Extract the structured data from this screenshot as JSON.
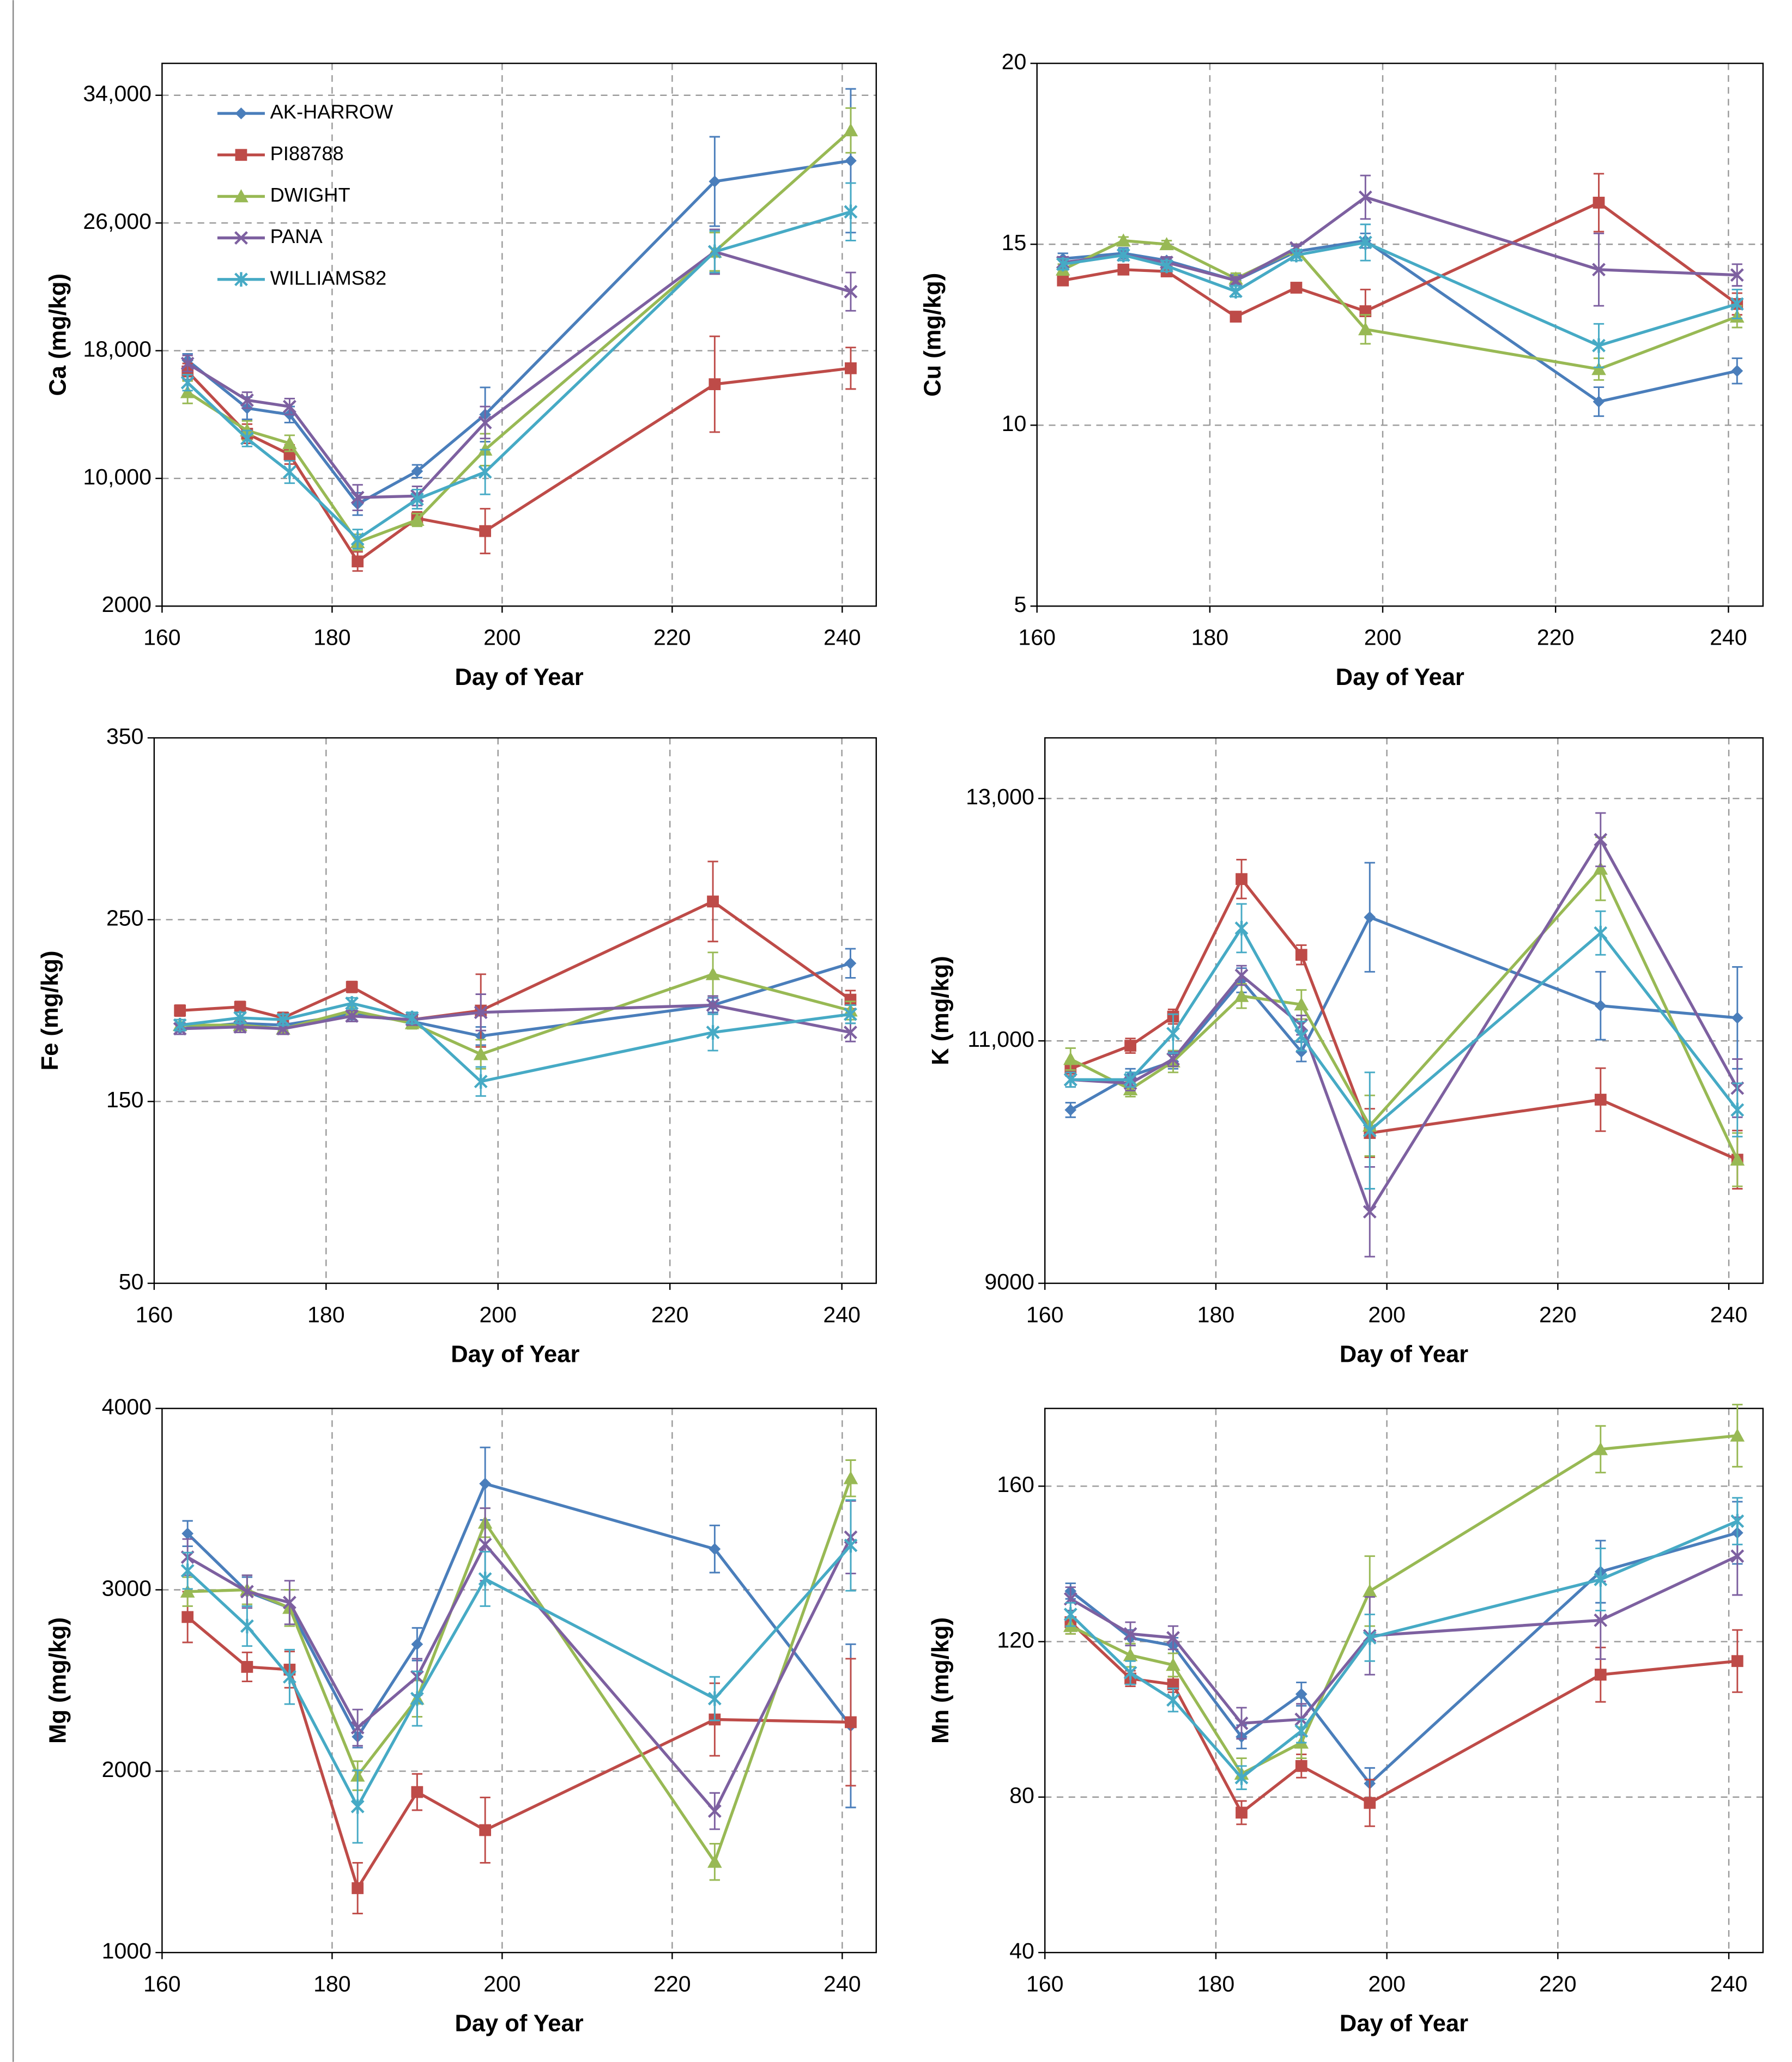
{
  "chart_data": [
    {
      "type": "line",
      "ylabel": "Ca (mg/kg)",
      "xlabel": "Day of Year",
      "legend": "upper left",
      "grid": true,
      "x": [
        163,
        170,
        175,
        183,
        190,
        198,
        225,
        241
      ],
      "xlim": [
        160,
        244
      ],
      "xticks": [
        160,
        180,
        200,
        220,
        240
      ],
      "ylim": [
        2000,
        36000
      ],
      "yticks": [
        2000,
        {
          "value": 10000,
          "label": "10,000"
        },
        {
          "value": 18000,
          "label": "18,000"
        },
        {
          "value": 26000,
          "label": "26,000"
        },
        {
          "value": 34000,
          "label": "34,000"
        }
      ],
      "series": [
        {
          "name": "AK-HARROW",
          "color": "#4a7ebb",
          "marker": "diamond",
          "values": [
            17400,
            14400,
            14000,
            8400,
            10450,
            14000,
            28600,
            29900
          ],
          "errors": [
            400,
            700,
            500,
            700,
            400,
            1700,
            2800,
            4500
          ]
        },
        {
          "name": "PI88788",
          "color": "#be4b48",
          "marker": "square",
          "values": [
            16700,
            12800,
            11500,
            4800,
            7500,
            6700,
            15900,
            16900
          ],
          "errors": [
            500,
            600,
            600,
            600,
            400,
            1400,
            3000,
            1300
          ]
        },
        {
          "name": "DWIGHT",
          "color": "#98b954",
          "marker": "triangle",
          "values": [
            15400,
            13000,
            12200,
            6000,
            7400,
            11800,
            24200,
            31800
          ],
          "errors": [
            700,
            600,
            500,
            500,
            400,
            1000,
            1200,
            1400
          ]
        },
        {
          "name": "PANA",
          "color": "#7d60a0",
          "marker": "x",
          "values": [
            17200,
            14900,
            14500,
            8800,
            8900,
            13500,
            24200,
            21700
          ],
          "errors": [
            500,
            500,
            500,
            800,
            600,
            1000,
            1400,
            1200
          ]
        },
        {
          "name": "WILLIAMS82",
          "color": "#46aac5",
          "marker": "star",
          "values": [
            16000,
            12500,
            10400,
            6200,
            8700,
            10400,
            24200,
            26700
          ],
          "errors": [
            500,
            500,
            700,
            600,
            600,
            1400,
            1300,
            1800
          ]
        }
      ]
    },
    {
      "type": "line",
      "ylabel": "Cu (mg/kg)",
      "xlabel": "Day of Year",
      "grid": true,
      "x": [
        163,
        170,
        175,
        183,
        190,
        198,
        225,
        241
      ],
      "xlim": [
        160,
        244
      ],
      "xticks": [
        160,
        180,
        200,
        220,
        240
      ],
      "ylim": [
        5,
        20
      ],
      "yticks": [
        5,
        10,
        15,
        20
      ],
      "series": [
        {
          "name": "AK-HARROW",
          "color": "#4a7ebb",
          "marker": "diamond",
          "values": [
            14.6,
            14.75,
            14.55,
            14.0,
            14.8,
            15.1,
            10.65,
            11.5
          ],
          "errors": [
            0.15,
            0.15,
            0.1,
            0.15,
            0.15,
            0.2,
            0.4,
            0.35
          ]
        },
        {
          "name": "PI88788",
          "color": "#be4b48",
          "marker": "square",
          "values": [
            14.0,
            14.3,
            14.25,
            13.0,
            13.8,
            13.15,
            16.15,
            13.35
          ],
          "errors": [
            0.1,
            0.1,
            0.1,
            0.1,
            0.1,
            0.6,
            0.8,
            0.3
          ]
        },
        {
          "name": "DWIGHT",
          "color": "#98b954",
          "marker": "triangle",
          "values": [
            14.3,
            15.1,
            15.0,
            14.05,
            14.85,
            12.65,
            11.55,
            13.0
          ],
          "errors": [
            0.15,
            0.1,
            0.1,
            0.15,
            0.15,
            0.4,
            0.3,
            0.3
          ]
        },
        {
          "name": "PANA",
          "color": "#7d60a0",
          "marker": "x",
          "values": [
            14.5,
            14.7,
            14.5,
            14.0,
            14.9,
            16.3,
            14.3,
            14.15
          ],
          "errors": [
            0.15,
            0.1,
            0.15,
            0.1,
            0.1,
            0.6,
            1.0,
            0.3
          ]
        },
        {
          "name": "WILLIAMS82",
          "color": "#46aac5",
          "marker": "star",
          "values": [
            14.45,
            14.7,
            14.4,
            13.7,
            14.7,
            15.05,
            12.2,
            13.35
          ],
          "errors": [
            0.15,
            0.15,
            0.15,
            0.15,
            0.15,
            0.5,
            0.6,
            0.4
          ]
        }
      ]
    },
    {
      "type": "line",
      "ylabel": "Fe (mg/kg)",
      "xlabel": "Day of Year",
      "grid": true,
      "x": [
        163,
        170,
        175,
        183,
        190,
        198,
        225,
        241
      ],
      "xlim": [
        160,
        244
      ],
      "xticks": [
        160,
        180,
        200,
        220,
        240
      ],
      "ylim": [
        50,
        350
      ],
      "yticks": [
        50,
        150,
        250,
        350
      ],
      "series": [
        {
          "name": "AK-HARROW",
          "color": "#4a7ebb",
          "marker": "diamond",
          "values": [
            190,
            193,
            192,
            198,
            194,
            186,
            203,
            226
          ],
          "errors": [
            3,
            3,
            3,
            3,
            3,
            5,
            4,
            8
          ]
        },
        {
          "name": "PI88788",
          "color": "#be4b48",
          "marker": "square",
          "values": [
            200,
            202,
            196,
            213,
            195,
            200,
            260,
            206
          ],
          "errors": [
            3,
            3,
            3,
            3,
            3,
            20,
            22,
            5
          ]
        },
        {
          "name": "DWIGHT",
          "color": "#98b954",
          "marker": "triangle",
          "values": [
            192,
            192,
            190,
            200,
            193,
            176,
            220,
            200
          ],
          "errors": [
            3,
            3,
            3,
            3,
            3,
            8,
            12,
            5
          ]
        },
        {
          "name": "PANA",
          "color": "#7d60a0",
          "marker": "x",
          "values": [
            190,
            191,
            190,
            197,
            195,
            199,
            203,
            188
          ],
          "errors": [
            3,
            3,
            3,
            3,
            3,
            10,
            5,
            5
          ]
        },
        {
          "name": "WILLIAMS82",
          "color": "#46aac5",
          "marker": "star",
          "values": [
            192,
            196,
            195,
            204,
            196,
            161,
            188,
            198
          ],
          "errors": [
            3,
            3,
            3,
            3,
            3,
            8,
            10,
            5
          ]
        }
      ]
    },
    {
      "type": "line",
      "ylabel": "K (mg/kg)",
      "xlabel": "Day of Year",
      "grid": true,
      "x": [
        163,
        170,
        175,
        183,
        190,
        198,
        225,
        241
      ],
      "xlim": [
        160,
        244
      ],
      "xticks": [
        160,
        180,
        200,
        220,
        240
      ],
      "ylim": [
        9000,
        13500
      ],
      "yticks": [
        9000,
        {
          "value": 11000,
          "label": "11,000"
        },
        {
          "value": 13000,
          "label": "13,000"
        }
      ],
      "series": [
        {
          "name": "AK-HARROW",
          "color": "#4a7ebb",
          "marker": "diamond",
          "values": [
            10430,
            10710,
            10830,
            11500,
            10910,
            12020,
            11290,
            11190
          ],
          "errors": [
            60,
            60,
            60,
            100,
            80,
            450,
            280,
            420
          ]
        },
        {
          "name": "PI88788",
          "color": "#be4b48",
          "marker": "square",
          "values": [
            10770,
            10960,
            11200,
            12335,
            11710,
            10240,
            10515,
            10020
          ],
          "errors": [
            60,
            60,
            60,
            160,
            80,
            200,
            260,
            240
          ]
        },
        {
          "name": "DWIGHT",
          "color": "#98b954",
          "marker": "triangle",
          "values": [
            10850,
            10600,
            10830,
            11370,
            11300,
            10300,
            12420,
            10020
          ],
          "errors": [
            90,
            60,
            90,
            100,
            120,
            250,
            260,
            220
          ]
        },
        {
          "name": "PANA",
          "color": "#7d60a0",
          "marker": "x",
          "values": [
            10680,
            10650,
            10850,
            11540,
            11130,
            9590,
            12660,
            10610
          ],
          "errors": [
            60,
            60,
            60,
            80,
            80,
            370,
            220,
            240
          ]
        },
        {
          "name": "WILLIAMS82",
          "color": "#46aac5",
          "marker": "star",
          "values": [
            10680,
            10680,
            11060,
            11930,
            11040,
            10260,
            11890,
            10430
          ],
          "errors": [
            60,
            60,
            160,
            200,
            120,
            480,
            180,
            220
          ]
        }
      ]
    },
    {
      "type": "line",
      "ylabel": "Mg (mg/kg)",
      "xlabel": "Day of Year",
      "grid": true,
      "x": [
        163,
        170,
        175,
        183,
        190,
        198,
        225,
        241
      ],
      "xlim": [
        160,
        244
      ],
      "xticks": [
        160,
        180,
        200,
        220,
        240
      ],
      "ylim": [
        1000,
        4000
      ],
      "yticks": [
        1000,
        2000,
        3000,
        4000
      ],
      "series": [
        {
          "name": "AK-HARROW",
          "color": "#4a7ebb",
          "marker": "diamond",
          "values": [
            3310,
            2990,
            2900,
            2190,
            2700,
            3585,
            3225,
            2250
          ],
          "errors": [
            70,
            80,
            100,
            60,
            90,
            200,
            130,
            450
          ]
        },
        {
          "name": "PI88788",
          "color": "#be4b48",
          "marker": "square",
          "values": [
            2850,
            2575,
            2560,
            1355,
            1885,
            1675,
            2285,
            2270
          ],
          "errors": [
            140,
            80,
            100,
            140,
            100,
            180,
            200,
            350
          ]
        },
        {
          "name": "DWIGHT",
          "color": "#98b954",
          "marker": "triangle",
          "values": [
            2990,
            3000,
            2900,
            1975,
            2400,
            3370,
            1500,
            3615
          ],
          "errors": [
            80,
            80,
            100,
            80,
            100,
            80,
            100,
            100
          ]
        },
        {
          "name": "PANA",
          "color": "#7d60a0",
          "marker": "x",
          "values": [
            3180,
            2990,
            2930,
            2240,
            2520,
            3250,
            1780,
            3290
          ],
          "errors": [
            100,
            90,
            120,
            100,
            100,
            200,
            100,
            200
          ]
        },
        {
          "name": "WILLIAMS82",
          "color": "#46aac5",
          "marker": "star",
          "values": [
            3105,
            2800,
            2520,
            1805,
            2400,
            3060,
            2400,
            3245
          ],
          "errors": [
            100,
            110,
            150,
            200,
            150,
            150,
            120,
            250
          ]
        }
      ]
    },
    {
      "type": "line",
      "ylabel": "Mn (mg/kg)",
      "xlabel": "Day of Year",
      "grid": true,
      "x": [
        163,
        170,
        175,
        183,
        190,
        198,
        225,
        241
      ],
      "xlim": [
        160,
        244
      ],
      "xticks": [
        160,
        180,
        200,
        220,
        240
      ],
      "ylim": [
        40,
        180
      ],
      "yticks": [
        40,
        80,
        120,
        160
      ],
      "series": [
        {
          "name": "AK-HARROW",
          "color": "#4a7ebb",
          "marker": "diamond",
          "values": [
            133,
            121,
            119,
            95.5,
            106.5,
            83.5,
            138,
            148
          ],
          "errors": [
            2,
            2,
            2,
            3,
            3,
            4,
            8,
            8
          ]
        },
        {
          "name": "PI88788",
          "color": "#be4b48",
          "marker": "square",
          "values": [
            125,
            110.5,
            109,
            76,
            88,
            78.5,
            111.5,
            115
          ],
          "errors": [
            3,
            2,
            2,
            3,
            3,
            6,
            7,
            8
          ]
        },
        {
          "name": "DWIGHT",
          "color": "#98b954",
          "marker": "triangle",
          "values": [
            124,
            116.5,
            114,
            86,
            94,
            133,
            169.5,
            173
          ],
          "errors": [
            2,
            3,
            3,
            4,
            4,
            9,
            6,
            8
          ]
        },
        {
          "name": "PANA",
          "color": "#7d60a0",
          "marker": "x",
          "values": [
            131,
            122,
            121,
            99,
            100,
            121.5,
            125.5,
            142
          ],
          "errors": [
            3,
            3,
            3,
            4,
            4,
            10,
            10,
            10
          ]
        },
        {
          "name": "WILLIAMS82",
          "color": "#46aac5",
          "marker": "star",
          "values": [
            127,
            112,
            105,
            85,
            97,
            121,
            136,
            151
          ],
          "errors": [
            3,
            3,
            3,
            3,
            3,
            6,
            8,
            6
          ]
        }
      ]
    }
  ]
}
